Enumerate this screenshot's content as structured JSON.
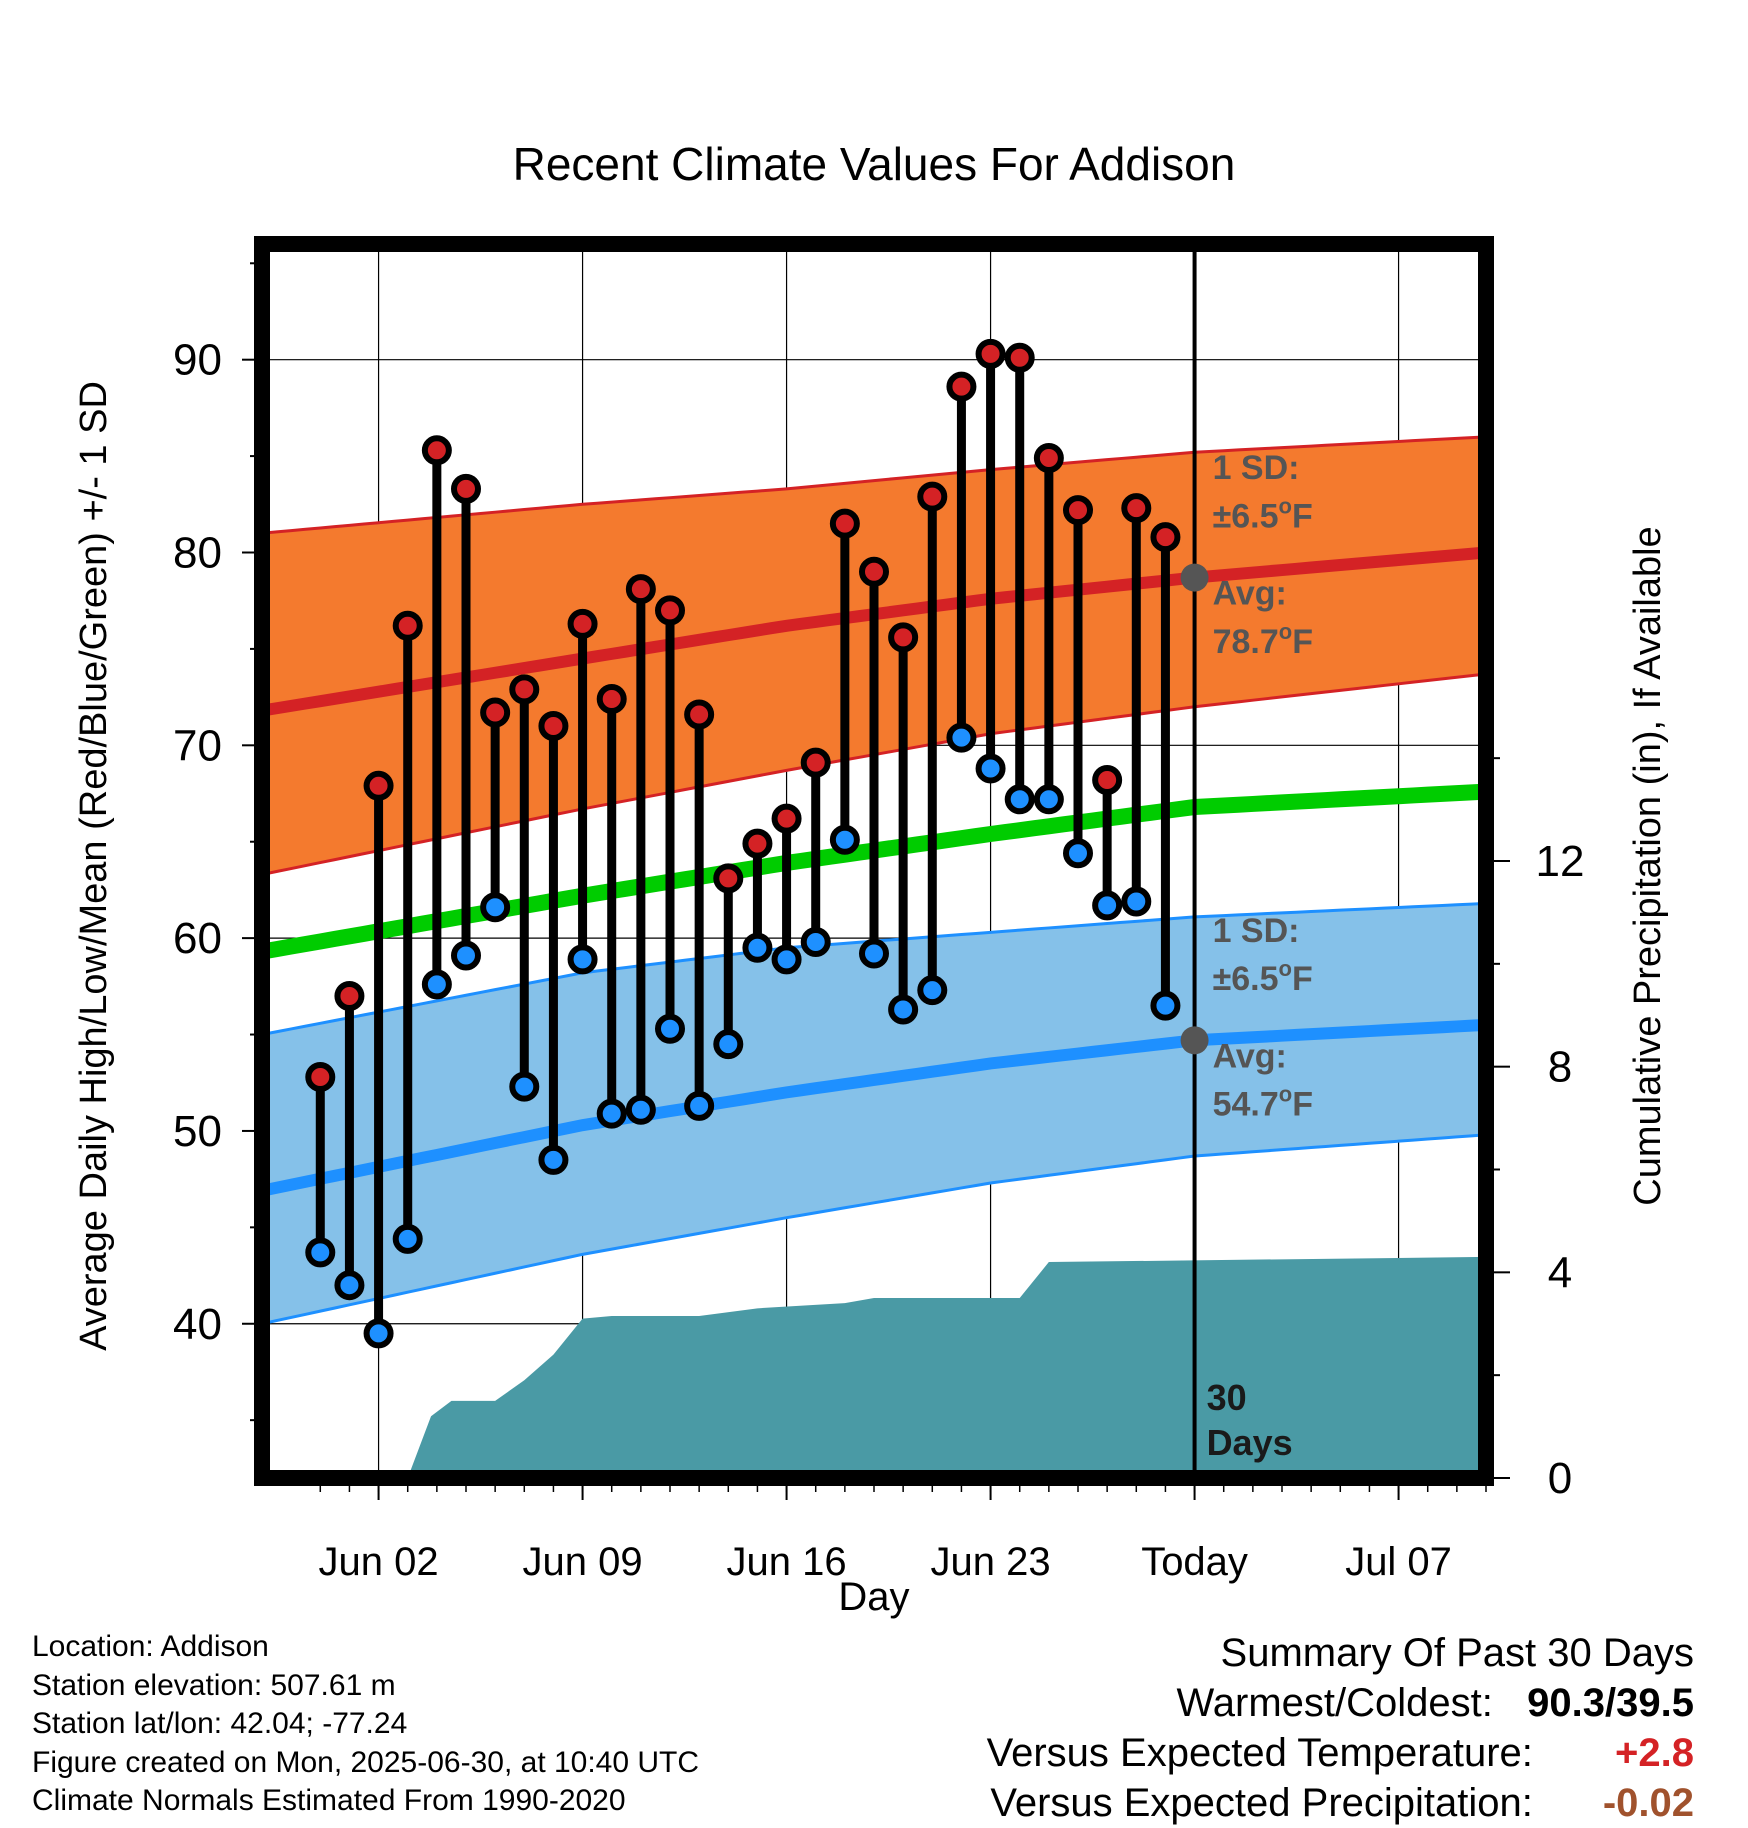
{
  "chart_data": {
    "type": "line",
    "title": "Recent Climate Values For Addison",
    "xlabel": "Day",
    "ylabel": "Average Daily High/Low/Mean (Red/Blue/Green) +/- 1 SD",
    "y2label": "Cumulative Precipitation (in), If Available",
    "x_ticks": [
      "Jun 02",
      "Jun 09",
      "Jun 16",
      "Jun 23",
      "Today",
      "Jul 07"
    ],
    "y_ticks": [
      40,
      50,
      60,
      70,
      80,
      90
    ],
    "y2_ticks": [
      0,
      4,
      8,
      12
    ],
    "ylim": [
      32,
      96
    ],
    "y2lim": [
      0,
      24
    ],
    "xlim": [
      "2025-05-29",
      "2025-07-10"
    ],
    "normal_high_mean": {
      "x": [
        "2025-05-29",
        "2025-06-09",
        "2025-06-16",
        "2025-06-23",
        "2025-06-30",
        "2025-07-10"
      ],
      "y": [
        71.8,
        74.5,
        76.2,
        77.6,
        78.7,
        80.0
      ]
    },
    "normal_high_sd_band": {
      "upper": [
        81.0,
        82.5,
        83.3,
        84.3,
        85.2,
        86.0
      ],
      "lower": [
        63.3,
        66.7,
        68.7,
        70.6,
        72.0,
        73.7
      ]
    },
    "normal_mean": {
      "x": [
        "2025-05-29",
        "2025-06-09",
        "2025-06-16",
        "2025-06-23",
        "2025-06-30",
        "2025-07-10"
      ],
      "y": [
        59.3,
        62.2,
        63.9,
        65.4,
        66.8,
        67.6
      ]
    },
    "normal_low_mean": {
      "x": [
        "2025-05-29",
        "2025-06-09",
        "2025-06-16",
        "2025-06-23",
        "2025-06-30",
        "2025-07-10"
      ],
      "y": [
        46.9,
        50.3,
        52.0,
        53.5,
        54.7,
        55.5
      ]
    },
    "normal_low_sd_band": {
      "upper": [
        55.0,
        58.2,
        59.5,
        60.3,
        61.1,
        61.8
      ],
      "lower": [
        40.0,
        43.6,
        45.5,
        47.3,
        48.7,
        49.8
      ]
    },
    "daily": {
      "dates": [
        "2025-05-31",
        "2025-06-01",
        "2025-06-02",
        "2025-06-03",
        "2025-06-04",
        "2025-06-05",
        "2025-06-06",
        "2025-06-07",
        "2025-06-08",
        "2025-06-09",
        "2025-06-10",
        "2025-06-11",
        "2025-06-12",
        "2025-06-13",
        "2025-06-14",
        "2025-06-15",
        "2025-06-16",
        "2025-06-17",
        "2025-06-18",
        "2025-06-19",
        "2025-06-20",
        "2025-06-21",
        "2025-06-22",
        "2025-06-23",
        "2025-06-24",
        "2025-06-25",
        "2025-06-26",
        "2025-06-27",
        "2025-06-28",
        "2025-06-29"
      ],
      "highs": [
        52.8,
        57.0,
        67.9,
        76.2,
        85.3,
        83.3,
        71.7,
        72.9,
        71.0,
        76.3,
        72.4,
        78.1,
        77.0,
        71.6,
        63.1,
        64.9,
        66.2,
        69.1,
        81.5,
        79.0,
        75.6,
        82.9,
        88.6,
        90.3,
        90.1,
        84.9,
        82.2,
        68.2,
        82.3,
        80.8
      ],
      "lows": [
        43.7,
        42.0,
        39.5,
        44.4,
        57.6,
        59.1,
        61.6,
        52.3,
        48.5,
        58.9,
        50.9,
        51.1,
        55.3,
        51.3,
        54.5,
        59.5,
        58.9,
        59.8,
        65.1,
        59.2,
        56.3,
        57.3,
        70.4,
        68.8,
        67.2,
        67.2,
        64.4,
        61.7,
        61.9,
        56.5
      ]
    },
    "cumulative_precip": {
      "x": [
        "2025-06-03",
        "2025-06-03.8",
        "2025-06-04.5",
        "2025-06-05",
        "2025-06-06",
        "2025-06-07",
        "2025-06-08",
        "2025-06-09",
        "2025-06-10",
        "2025-06-13",
        "2025-06-15",
        "2025-06-18",
        "2025-06-19",
        "2025-06-24",
        "2025-06-25",
        "2025-07-10"
      ],
      "y": [
        0,
        1.2,
        1.5,
        1.5,
        1.5,
        1.9,
        2.4,
        3.1,
        3.15,
        3.15,
        3.3,
        3.4,
        3.5,
        3.5,
        4.2,
        4.3
      ]
    },
    "annotations": {
      "high_sd_label": "1 SD:",
      "high_sd_value": "±6.5",
      "high_avg_label": "Avg:",
      "high_avg_value": "78.7",
      "low_sd_label": "1 SD:",
      "low_sd_value": "±6.5",
      "low_avg_label": "Avg:",
      "low_avg_value": "54.7",
      "unit_suffix": "F",
      "degree": "o",
      "period_number": "30",
      "period_unit": "Days"
    },
    "colors": {
      "high_band": "#f47a2e",
      "high_line": "#d42225",
      "mean_line": "#00cc00",
      "low_band": "#85c1e9",
      "low_line": "#1e90ff",
      "precip": "#4a9aa5",
      "high_marker": "#d42225",
      "low_marker": "#1e90ff",
      "annot_text": "#555555"
    }
  },
  "footer_left": {
    "location": "Location: Addison",
    "elevation": "Station elevation: 507.61 m",
    "latlon": "Station lat/lon: 42.04; -77.24",
    "created": "Figure created on Mon, 2025-06-30, at 10:40 UTC",
    "normals": "Climate Normals Estimated From 1990-2020"
  },
  "footer_right": {
    "title": "Summary Of Past 30 Days",
    "warm_cold_label": "Warmest/Coldest:",
    "warm_cold_value": "90.3/39.5",
    "temp_label": "Versus Expected Temperature:",
    "temp_value": "+2.8",
    "temp_color": "#d42225",
    "precip_label": "Versus Expected Precipitation:",
    "precip_value": "-0.02",
    "precip_color": "#a0522d"
  }
}
